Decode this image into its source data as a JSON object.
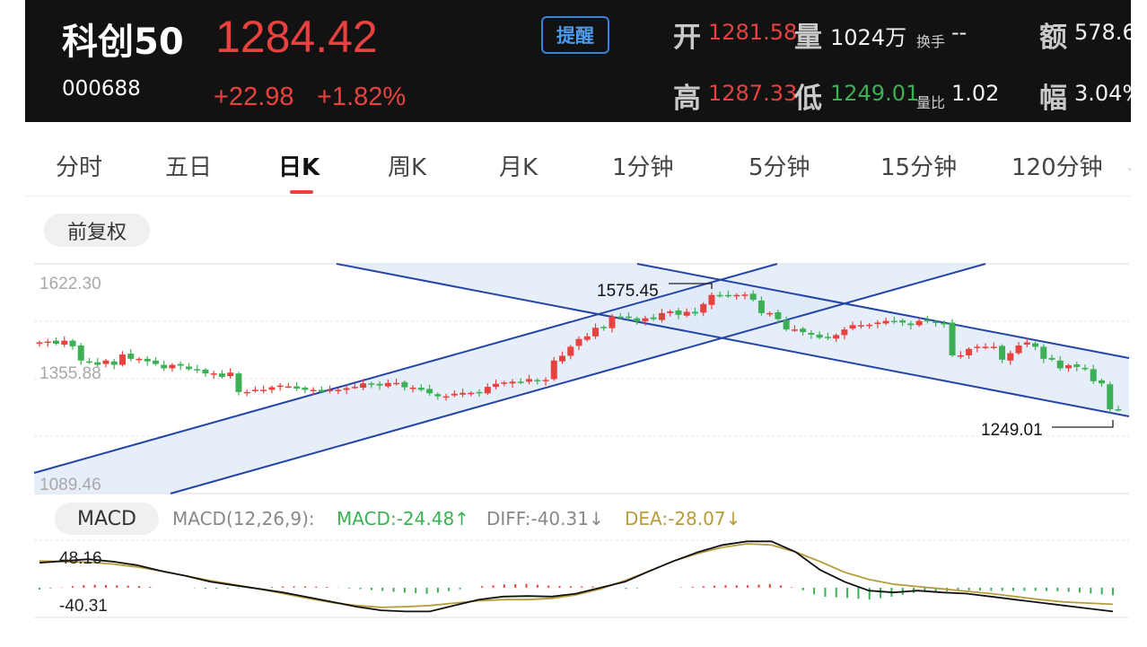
{
  "header": {
    "name": "科创50",
    "code": "000688",
    "price": "1284.42",
    "change": "+22.98",
    "change_pct": "+1.82%",
    "alert_label": "提醒",
    "open_label": "开",
    "open_value": "1281.58",
    "volume_label": "量",
    "volume_value": "1024万",
    "turnover_label": "换手",
    "turnover_value": "--",
    "amount_label": "额",
    "amount_value": "578.6",
    "high_label": "高",
    "high_value": "1287.33",
    "low_label": "低",
    "low_value": "1249.01",
    "vol_ratio_label": "量比",
    "vol_ratio_value": "1.02",
    "amplitude_label": "幅",
    "amplitude_value": "3.04%"
  },
  "tabs": [
    "分时",
    "五日",
    "日K",
    "周K",
    "月K",
    "1分钟",
    "5分钟",
    "15分钟",
    "120分钟"
  ],
  "active_tab": "日K",
  "adjust_label": "前复权",
  "macd": {
    "pill_label": "MACD",
    "params": "MACD(12,26,9):",
    "macd_text": "MACD:-24.48",
    "diff_text": "DIFF:-40.31",
    "dea_text": "DEA:-28.07"
  },
  "colors": {
    "up": "#e8413e",
    "down": "#3cb054",
    "channel": "#2445a8",
    "diff_line": "#111111",
    "dea_line": "#b89b3a"
  },
  "chart_data": [
    {
      "type": "candlestick",
      "y_ticks": [
        "1622.30",
        "1355.88",
        "1089.46"
      ],
      "ylim": [
        1089.46,
        1622.3
      ],
      "annotations": [
        {
          "label": "1575.45",
          "value": 1575.45
        },
        {
          "label": "1249.01",
          "value": 1249.01
        }
      ],
      "closes": [
        1440,
        1442,
        1437,
        1444,
        1431,
        1398,
        1394,
        1388,
        1398,
        1388,
        1412,
        1402,
        1402,
        1396,
        1390,
        1380,
        1388,
        1386,
        1378,
        1375,
        1368,
        1368,
        1360,
        1370,
        1325,
        1325,
        1330,
        1330,
        1336,
        1340,
        1338,
        1333,
        1330,
        1330,
        1326,
        1330,
        1330,
        1334,
        1337,
        1345,
        1342,
        1340,
        1346,
        1346,
        1336,
        1335,
        1330,
        1322,
        1315,
        1315,
        1321,
        1323,
        1323,
        1324,
        1337,
        1344,
        1347,
        1349,
        1347,
        1355,
        1350,
        1353,
        1398,
        1409,
        1430,
        1448,
        1454,
        1474,
        1475,
        1500,
        1498,
        1498,
        1489,
        1496,
        1494,
        1508,
        1512,
        1504,
        1511,
        1507,
        1529,
        1550,
        1548,
        1549,
        1550,
        1551,
        1539,
        1508,
        1508,
        1494,
        1470,
        1470,
        1464,
        1458,
        1451,
        1451,
        1457,
        1470,
        1480,
        1480,
        1481,
        1486,
        1490,
        1489,
        1486,
        1480,
        1490,
        1490,
        1485,
        1484,
        1410,
        1410,
        1425,
        1430,
        1430,
        1430,
        1400,
        1415,
        1433,
        1440,
        1430,
        1402,
        1400,
        1380,
        1387,
        1383,
        1378,
        1350,
        1345,
        1285,
        1284
      ]
    },
    {
      "type": "line",
      "title": "MACD(12,26,9)",
      "y_ticks": [
        "48.16",
        "-40.31"
      ],
      "series": [
        {
          "name": "DIFF",
          "last": -40.31
        },
        {
          "name": "DEA",
          "last": -28.07
        },
        {
          "name": "MACD",
          "last": -24.48
        }
      ],
      "diff_values": [
        42,
        45,
        48,
        44,
        38,
        28,
        20,
        10,
        4,
        -2,
        -8,
        -16,
        -24,
        -32,
        -38,
        -40,
        -40,
        -30,
        -20,
        -15,
        -14,
        -15,
        -10,
        0,
        10,
        28,
        45,
        60,
        72,
        78,
        78,
        60,
        30,
        10,
        -5,
        -8,
        -5,
        -8,
        -10,
        -15,
        -20,
        -25,
        -30,
        -35,
        -40
      ],
      "dea_values": [
        45,
        44,
        43,
        40,
        35,
        28,
        20,
        12,
        5,
        -2,
        -10,
        -18,
        -25,
        -30,
        -33,
        -32,
        -30,
        -26,
        -22,
        -20,
        -20,
        -18,
        -12,
        -2,
        12,
        28,
        45,
        58,
        68,
        74,
        72,
        60,
        44,
        26,
        14,
        6,
        2,
        -2,
        -6,
        -10,
        -15,
        -20,
        -24,
        -26,
        -28
      ]
    }
  ]
}
